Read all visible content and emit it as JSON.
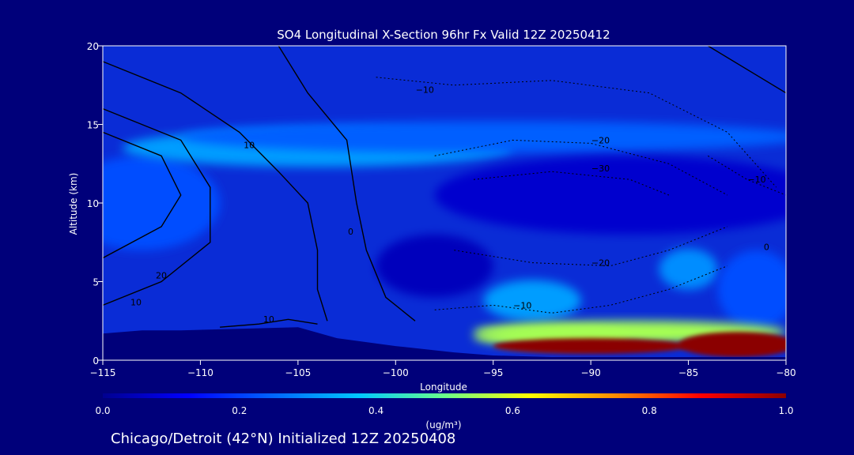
{
  "chart_data": {
    "type": "heatmap",
    "title": "SO4 Longitudinal X-Section 96hr  Fx Valid 12Z 20250412",
    "xlabel": "Longitude",
    "ylabel": "Altitude (km)",
    "xlim": [
      -115,
      -80
    ],
    "ylim": [
      0,
      20
    ],
    "x_ticks": [
      -115,
      -110,
      -105,
      -100,
      -95,
      -90,
      -85,
      -80
    ],
    "x_tick_labels": [
      "−115",
      "−110",
      "−105",
      "−100",
      "−95",
      "−90",
      "−85",
      "−80"
    ],
    "y_ticks": [
      0,
      5,
      10,
      15,
      20
    ],
    "y_tick_labels": [
      "0",
      "5",
      "10",
      "15",
      "20"
    ],
    "colorbar": {
      "label": "(ug/m³)",
      "min": 0.0,
      "max": 1.0,
      "ticks": [
        0.0,
        0.2,
        0.4,
        0.6,
        0.8,
        1.0
      ],
      "tick_labels": [
        "0.0",
        "0.2",
        "0.4",
        "0.6",
        "0.8",
        "1.0"
      ],
      "colors": [
        "#00008f",
        "#0000ff",
        "#0066ff",
        "#00c8ff",
        "#6aff8a",
        "#ffff00",
        "#ff8c00",
        "#ff0000",
        "#8b0000"
      ]
    },
    "terrain": [
      {
        "lon": -115,
        "alt": 1.7
      },
      {
        "lon": -113,
        "alt": 1.9
      },
      {
        "lon": -111,
        "alt": 1.9
      },
      {
        "lon": -108,
        "alt": 2.0
      },
      {
        "lon": -105,
        "alt": 2.1
      },
      {
        "lon": -103,
        "alt": 1.4
      },
      {
        "lon": -100,
        "alt": 0.9
      },
      {
        "lon": -97,
        "alt": 0.5
      },
      {
        "lon": -95,
        "alt": 0.3
      },
      {
        "lon": -92,
        "alt": 0.2
      },
      {
        "lon": -88,
        "alt": 0.2
      },
      {
        "lon": -85,
        "alt": 0.2
      },
      {
        "lon": -80,
        "alt": 0.2
      }
    ],
    "field": [
      {
        "lon": -113,
        "alt": 10,
        "lon_r": 4,
        "alt_r": 3,
        "value": 0.22
      },
      {
        "lon": -104,
        "alt": 13.5,
        "lon_r": 10,
        "alt_r": 1.2,
        "value": 0.32
      },
      {
        "lon": -95,
        "alt": 14.2,
        "lon_r": 16,
        "alt_r": 1.0,
        "value": 0.24
      },
      {
        "lon": -88,
        "alt": 10.5,
        "lon_r": 10,
        "alt_r": 2.5,
        "value": 0.07
      },
      {
        "lon": -98,
        "alt": 6,
        "lon_r": 3,
        "alt_r": 2,
        "value": 0.05
      },
      {
        "lon": -93,
        "alt": 3.8,
        "lon_r": 2.5,
        "alt_r": 1.3,
        "value": 0.32
      },
      {
        "lon": -85,
        "alt": 5.8,
        "lon_r": 1.5,
        "alt_r": 1.3,
        "value": 0.3
      },
      {
        "lon": -81.5,
        "alt": 4.5,
        "lon_r": 2,
        "alt_r": 2.5,
        "value": 0.22
      },
      {
        "lon": -92,
        "alt": 1.5,
        "lon_r": 4,
        "alt_r": 0.6,
        "value": 0.55
      },
      {
        "lon": -88,
        "alt": 1.8,
        "lon_r": 8,
        "alt_r": 0.7,
        "value": 0.55
      },
      {
        "lon": -90,
        "alt": 0.9,
        "lon_r": 5,
        "alt_r": 0.5,
        "value": 1.0
      },
      {
        "lon": -82.5,
        "alt": 1.0,
        "lon_r": 3,
        "alt_r": 0.8,
        "value": 1.0
      }
    ],
    "contours_solid": [
      {
        "label": "10",
        "label_at": {
          "lon": -107.5,
          "alt": 13.5
        },
        "points": [
          [
            -115,
            19
          ],
          [
            -111,
            17
          ],
          [
            -108,
            14.5
          ],
          [
            -106,
            12
          ],
          [
            -104.5,
            10
          ],
          [
            -104,
            7
          ],
          [
            -104,
            4.5
          ],
          [
            -103.5,
            2.5
          ]
        ]
      },
      {
        "label": "20",
        "label_at": {
          "lon": -112,
          "alt": 5.2
        },
        "points": [
          [
            -115,
            6.5
          ],
          [
            -112,
            8.5
          ],
          [
            -111,
            10.5
          ],
          [
            -112,
            13
          ],
          [
            -115,
            14.5
          ]
        ]
      },
      {
        "label": "10",
        "label_at": {
          "lon": -113.3,
          "alt": 3.5
        },
        "points": [
          [
            -115,
            3.5
          ],
          [
            -112,
            5
          ],
          [
            -109.5,
            7.5
          ],
          [
            -109.5,
            11
          ],
          [
            -111,
            14
          ],
          [
            -115,
            16
          ]
        ]
      },
      {
        "label": "0",
        "label_at": {
          "lon": -102.3,
          "alt": 8
        },
        "points": [
          [
            -106,
            20
          ],
          [
            -104.5,
            17
          ],
          [
            -102.5,
            14
          ],
          [
            -102,
            10
          ],
          [
            -101.5,
            7
          ],
          [
            -100.5,
            4
          ],
          [
            -99,
            2.5
          ]
        ]
      },
      {
        "label": "10",
        "label_at": {
          "lon": -106.5,
          "alt": 2.4
        },
        "points": [
          [
            -109,
            2.1
          ],
          [
            -107,
            2.3
          ],
          [
            -105.5,
            2.6
          ],
          [
            -104,
            2.3
          ]
        ]
      },
      {
        "label": "0",
        "label_at": {
          "lon": -81,
          "alt": 7
        },
        "points": [
          [
            -84,
            20
          ],
          [
            -82,
            18.5
          ],
          [
            -80,
            17
          ]
        ]
      }
    ],
    "contours_dashed": [
      {
        "label": "−10",
        "label_at": {
          "lon": -98.5,
          "alt": 17
        },
        "points": [
          [
            -101,
            18
          ],
          [
            -97,
            17.5
          ],
          [
            -92,
            17.8
          ],
          [
            -87,
            17
          ],
          [
            -83,
            14.5
          ],
          [
            -80.5,
            11
          ]
        ]
      },
      {
        "label": "−20",
        "label_at": {
          "lon": -89.5,
          "alt": 13.8
        },
        "points": [
          [
            -98,
            13
          ],
          [
            -94,
            14
          ],
          [
            -90,
            13.8
          ],
          [
            -86,
            12.5
          ],
          [
            -83,
            10.5
          ]
        ]
      },
      {
        "label": "−30",
        "label_at": {
          "lon": -89.5,
          "alt": 12
        },
        "points": [
          [
            -96,
            11.5
          ],
          [
            -92,
            12
          ],
          [
            -88,
            11.5
          ],
          [
            -86,
            10.5
          ]
        ]
      },
      {
        "label": "−20",
        "label_at": {
          "lon": -89.5,
          "alt": 6
        },
        "points": [
          [
            -97,
            7
          ],
          [
            -93,
            6.2
          ],
          [
            -89,
            6
          ],
          [
            -86,
            7
          ],
          [
            -83,
            8.5
          ]
        ]
      },
      {
        "label": "−10",
        "label_at": {
          "lon": -93.5,
          "alt": 3.3
        },
        "points": [
          [
            -98,
            3.2
          ],
          [
            -95,
            3.5
          ],
          [
            -92,
            3
          ],
          [
            -89,
            3.5
          ],
          [
            -86,
            4.5
          ],
          [
            -83,
            6
          ]
        ]
      },
      {
        "label": "−10",
        "label_at": {
          "lon": -81.5,
          "alt": 11.3
        },
        "points": [
          [
            -84,
            13
          ],
          [
            -82,
            11.5
          ],
          [
            -80,
            10.5
          ]
        ]
      }
    ]
  },
  "footer": {
    "text": "Chicago/Detroit (42°N) Initialized 12Z 20250408"
  }
}
